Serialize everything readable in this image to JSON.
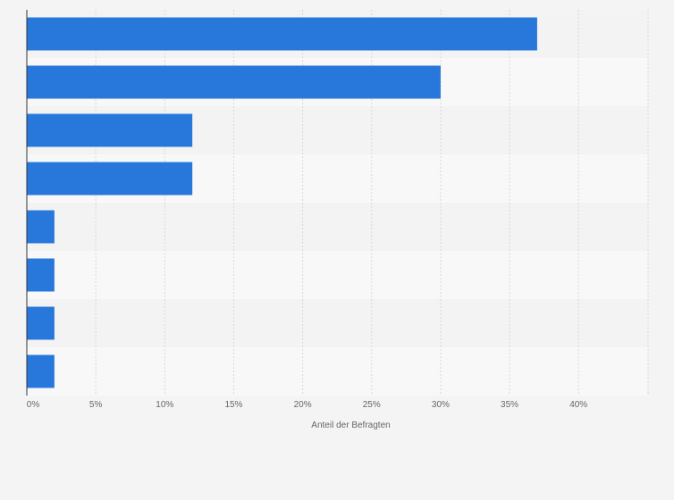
{
  "chart_data": {
    "type": "bar",
    "orientation": "horizontal",
    "categories": [
      "",
      "",
      "",
      "",
      "",
      "",
      "",
      ""
    ],
    "values": [
      37,
      30,
      12,
      12,
      2,
      2,
      2,
      2
    ],
    "title": "",
    "xlabel": "Anteil der Befragten",
    "ylabel": "",
    "xlim": [
      0,
      45
    ],
    "x_ticks": [
      0,
      5,
      10,
      15,
      20,
      25,
      30,
      35,
      40
    ],
    "x_tick_labels": [
      "0%",
      "5%",
      "10%",
      "15%",
      "20%",
      "25%",
      "30%",
      "35%",
      "40%"
    ],
    "grid": true,
    "legend": "none",
    "colors": {
      "bar": "#2878dc",
      "background": "#f4f4f4",
      "band_light": "#f8f8f8",
      "band_dark": "#f3f3f3",
      "grid": "#d8d8d8",
      "axis": "#333333",
      "text": "#666666"
    }
  }
}
